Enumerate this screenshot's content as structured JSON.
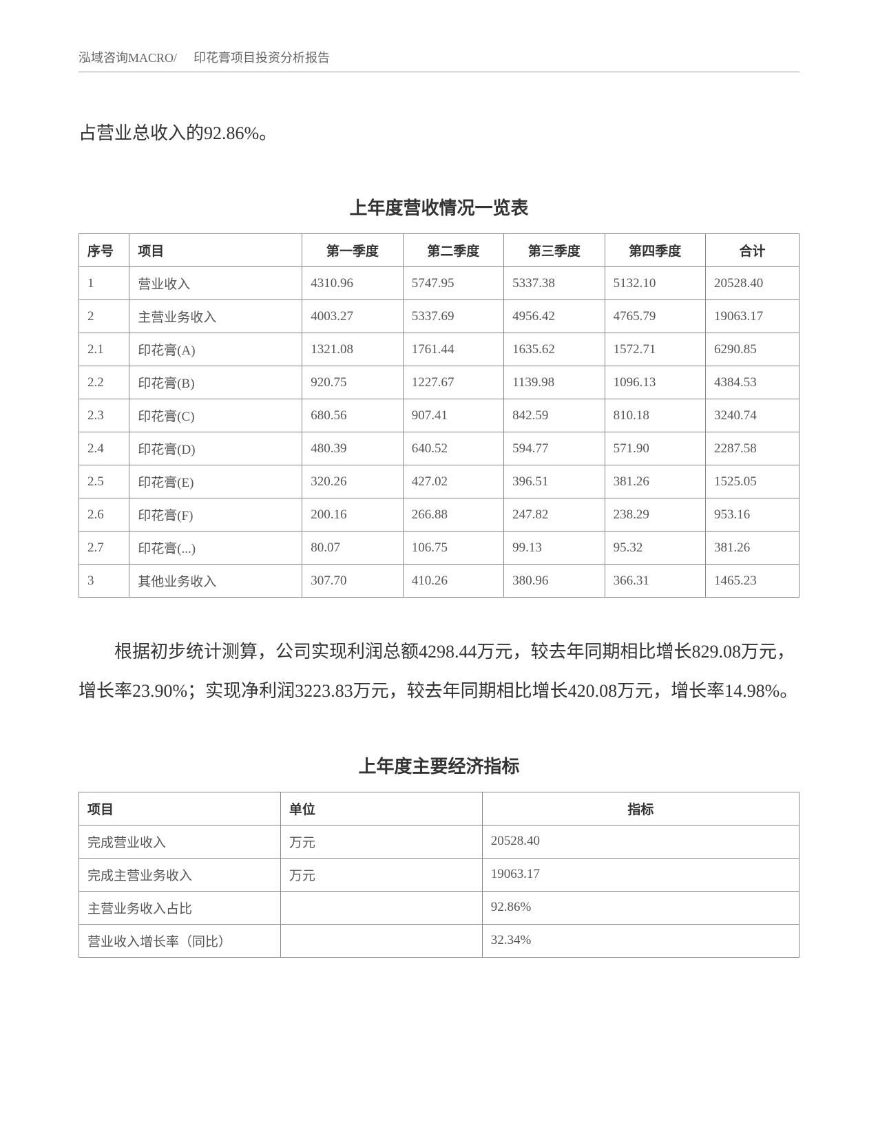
{
  "header": {
    "company": "泓域咨询MACRO/",
    "doc_title": "印花膏项目投资分析报告"
  },
  "intro_text": "占营业总收入的92.86%。",
  "table1": {
    "title": "上年度营收情况一览表",
    "columns": [
      "序号",
      "项目",
      "第一季度",
      "第二季度",
      "第三季度",
      "第四季度",
      "合计"
    ],
    "rows": [
      [
        "1",
        "营业收入",
        "4310.96",
        "5747.95",
        "5337.38",
        "5132.10",
        "20528.40"
      ],
      [
        "2",
        "主营业务收入",
        "4003.27",
        "5337.69",
        "4956.42",
        "4765.79",
        "19063.17"
      ],
      [
        "2.1",
        "印花膏(A)",
        "1321.08",
        "1761.44",
        "1635.62",
        "1572.71",
        "6290.85"
      ],
      [
        "2.2",
        "印花膏(B)",
        "920.75",
        "1227.67",
        "1139.98",
        "1096.13",
        "4384.53"
      ],
      [
        "2.3",
        "印花膏(C)",
        "680.56",
        "907.41",
        "842.59",
        "810.18",
        "3240.74"
      ],
      [
        "2.4",
        "印花膏(D)",
        "480.39",
        "640.52",
        "594.77",
        "571.90",
        "2287.58"
      ],
      [
        "2.5",
        "印花膏(E)",
        "320.26",
        "427.02",
        "396.51",
        "381.26",
        "1525.05"
      ],
      [
        "2.6",
        "印花膏(F)",
        "200.16",
        "266.88",
        "247.82",
        "238.29",
        "953.16"
      ],
      [
        "2.7",
        "印花膏(...)",
        "80.07",
        "106.75",
        "99.13",
        "95.32",
        "381.26"
      ],
      [
        "3",
        "其他业务收入",
        "307.70",
        "410.26",
        "380.96",
        "366.31",
        "1465.23"
      ]
    ]
  },
  "body_text": "根据初步统计测算，公司实现利润总额4298.44万元，较去年同期相比增长829.08万元，增长率23.90%；实现净利润3223.83万元，较去年同期相比增长420.08万元，增长率14.98%。",
  "table2": {
    "title": "上年度主要经济指标",
    "columns": [
      "项目",
      "单位",
      "指标"
    ],
    "rows": [
      [
        "完成营业收入",
        "万元",
        "20528.40"
      ],
      [
        "完成主营业务收入",
        "万元",
        "19063.17"
      ],
      [
        "主营业务收入占比",
        "",
        "92.86%"
      ],
      [
        "营业收入增长率（同比）",
        "",
        "32.34%"
      ]
    ]
  }
}
